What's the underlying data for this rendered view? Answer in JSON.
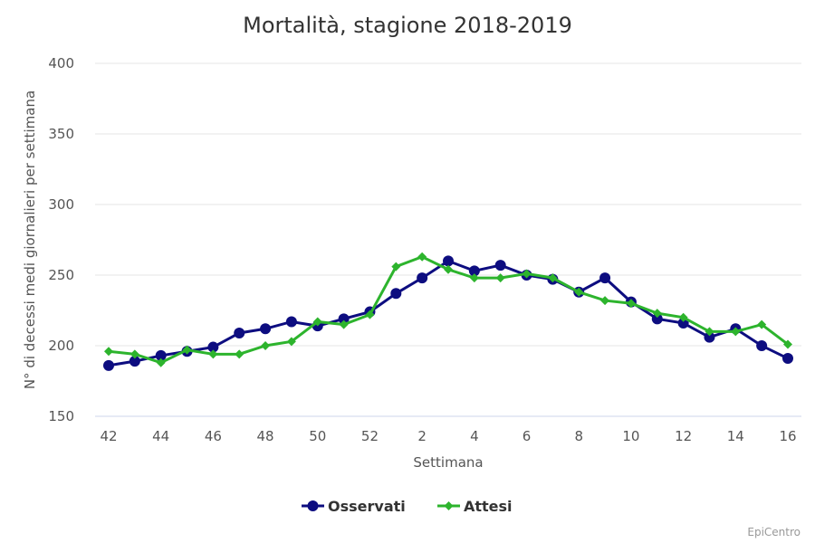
{
  "chart_data": {
    "type": "line",
    "title": "Mortalità, stagione 2018-2019",
    "xlabel": "Settimana",
    "ylabel": "N° di decessi medi giornalieri per settimana",
    "ylim": [
      150,
      400
    ],
    "yticks": [
      150,
      200,
      250,
      300,
      350,
      400
    ],
    "categories": [
      "42",
      "43",
      "44",
      "45",
      "46",
      "47",
      "48",
      "49",
      "50",
      "51",
      "52",
      "1",
      "2",
      "3",
      "4",
      "5",
      "6",
      "7",
      "8",
      "9",
      "10",
      "11",
      "12",
      "13",
      "14",
      "15",
      "16"
    ],
    "xtick_labels": [
      "42",
      "44",
      "46",
      "48",
      "50",
      "52",
      "2",
      "4",
      "6",
      "8",
      "10",
      "12",
      "14",
      "16"
    ],
    "grid": true,
    "legend": "bottom",
    "series": [
      {
        "name": "Osservati",
        "color": "#0d0d80",
        "marker": "circle",
        "values": [
          186,
          189,
          193,
          196,
          199,
          209,
          212,
          217,
          214,
          219,
          224,
          237,
          248,
          260,
          253,
          257,
          250,
          247,
          238,
          248,
          231,
          219,
          216,
          206,
          212,
          200,
          191
        ]
      },
      {
        "name": "Attesi",
        "color": "#2db42d",
        "marker": "diamond",
        "values": [
          196,
          194,
          188,
          197,
          194,
          194,
          200,
          203,
          217,
          215,
          222,
          256,
          263,
          254,
          248,
          248,
          251,
          248,
          238,
          232,
          230,
          223,
          220,
          210,
          210,
          215,
          201
        ]
      }
    ]
  },
  "credit": "EpiCentro"
}
